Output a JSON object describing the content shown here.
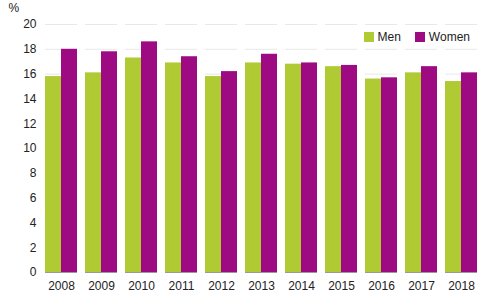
{
  "chart_data": {
    "type": "bar",
    "categories": [
      "2008",
      "2009",
      "2010",
      "2011",
      "2012",
      "2013",
      "2014",
      "2015",
      "2016",
      "2017",
      "2018"
    ],
    "series": [
      {
        "name": "Men",
        "color": "#afca32",
        "values": [
          15.8,
          16.1,
          17.3,
          16.9,
          15.8,
          16.9,
          16.8,
          16.6,
          15.6,
          16.1,
          15.4
        ]
      },
      {
        "name": "Women",
        "color": "#9e0a82",
        "values": [
          18.0,
          17.8,
          18.6,
          17.4,
          16.2,
          17.6,
          16.9,
          16.7,
          15.7,
          16.6,
          16.1
        ]
      }
    ],
    "y_label": "%",
    "ylim": [
      0,
      20
    ],
    "yticks": [
      0,
      2,
      4,
      6,
      8,
      10,
      12,
      14,
      16,
      18,
      20
    ],
    "grid": true,
    "legend": "upper right"
  }
}
